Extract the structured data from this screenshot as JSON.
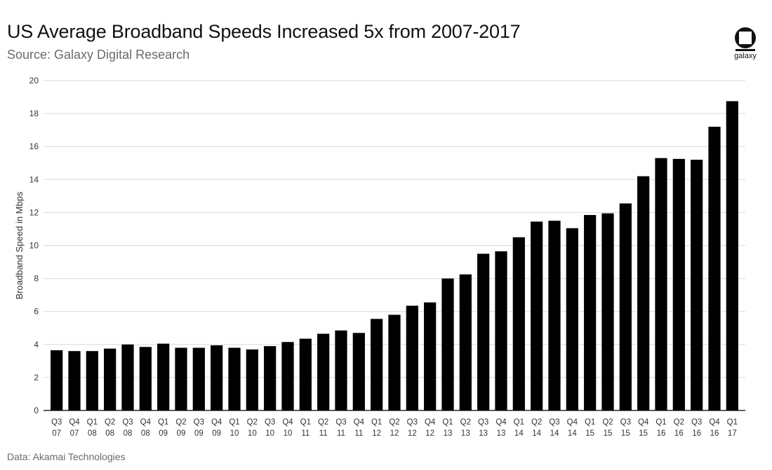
{
  "header": {
    "title": "US Average Broadband Speeds Increased 5x from 2007-2017",
    "subtitle": "Source: Galaxy Digital Research"
  },
  "logo": {
    "icon": "galaxy-logo-icon",
    "text": "galaxy"
  },
  "footer": {
    "note": "Data: Akamai Technologies"
  },
  "colors": {
    "bar": "#000000",
    "grid": "#d9d9d9",
    "axis": "#000000"
  },
  "chart_data": {
    "type": "bar",
    "title": "US Average Broadband Speeds Increased 5x from 2007-2017",
    "xlabel": "",
    "ylabel": "Broadband Speed in Mbps",
    "ylim": [
      0,
      20
    ],
    "yticks": [
      0,
      2,
      4,
      6,
      8,
      10,
      12,
      14,
      16,
      18,
      20
    ],
    "grid": true,
    "categories": [
      [
        "Q3",
        "07"
      ],
      [
        "Q4",
        "07"
      ],
      [
        "Q1",
        "08"
      ],
      [
        "Q2",
        "08"
      ],
      [
        "Q3",
        "08"
      ],
      [
        "Q4",
        "08"
      ],
      [
        "Q1",
        "09"
      ],
      [
        "Q2",
        "09"
      ],
      [
        "Q3",
        "09"
      ],
      [
        "Q4",
        "09"
      ],
      [
        "Q1",
        "10"
      ],
      [
        "Q2",
        "10"
      ],
      [
        "Q3",
        "10"
      ],
      [
        "Q4",
        "10"
      ],
      [
        "Q1",
        "11"
      ],
      [
        "Q2",
        "11"
      ],
      [
        "Q3",
        "11"
      ],
      [
        "Q4",
        "11"
      ],
      [
        "Q1",
        "12"
      ],
      [
        "Q2",
        "12"
      ],
      [
        "Q3",
        "12"
      ],
      [
        "Q4",
        "12"
      ],
      [
        "Q1",
        "13"
      ],
      [
        "Q2",
        "13"
      ],
      [
        "Q3",
        "13"
      ],
      [
        "Q4",
        "13"
      ],
      [
        "Q1",
        "14"
      ],
      [
        "Q2",
        "14"
      ],
      [
        "Q3",
        "14"
      ],
      [
        "Q4",
        "14"
      ],
      [
        "Q1",
        "15"
      ],
      [
        "Q2",
        "15"
      ],
      [
        "Q3",
        "15"
      ],
      [
        "Q4",
        "15"
      ],
      [
        "Q1",
        "16"
      ],
      [
        "Q2",
        "16"
      ],
      [
        "Q3",
        "16"
      ],
      [
        "Q4",
        "16"
      ],
      [
        "Q1",
        "17"
      ]
    ],
    "values": [
      3.65,
      3.6,
      3.6,
      3.75,
      4.0,
      3.85,
      4.05,
      3.8,
      3.8,
      3.95,
      3.8,
      3.7,
      3.9,
      4.15,
      4.35,
      4.65,
      4.85,
      4.7,
      5.55,
      5.8,
      6.35,
      6.55,
      8.0,
      8.25,
      9.5,
      9.65,
      10.5,
      11.45,
      11.5,
      11.05,
      11.85,
      11.95,
      12.55,
      14.2,
      15.3,
      15.25,
      15.2,
      17.2,
      18.75
    ]
  }
}
